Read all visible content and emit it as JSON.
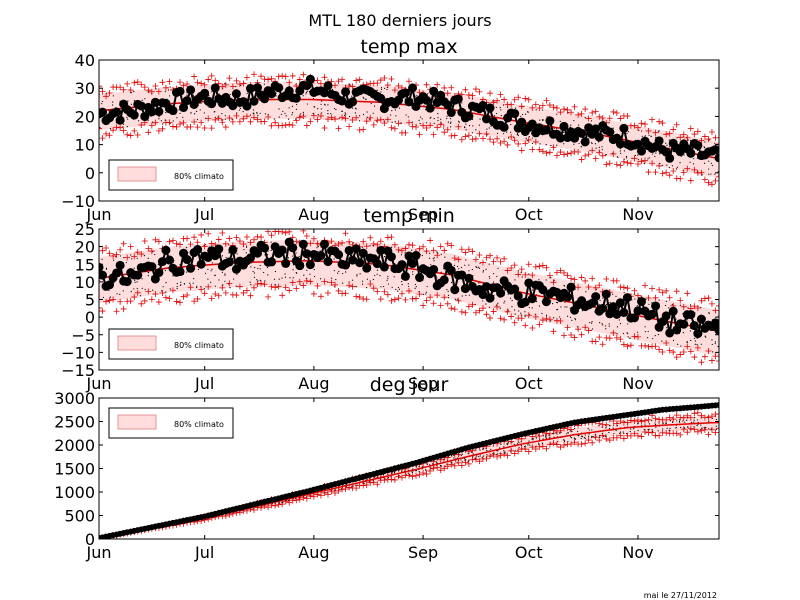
{
  "figure": {
    "title": "MTL 180 derniers jours",
    "footer": "mai le 27/11/2012"
  },
  "chart_data": [
    {
      "type": "line",
      "title": "temp max",
      "xlabel": "",
      "ylabel": "",
      "ylim": [
        -10,
        40
      ],
      "yticks": [
        "40",
        "30",
        "20",
        "10",
        "0",
        "−10"
      ],
      "month_ticks": [
        "Jun",
        "Jul",
        "Aug",
        "Sep",
        "Oct",
        "Nov"
      ],
      "legend": {
        "label": "80% climato",
        "placement": "lower-left"
      },
      "grid": false,
      "series": [
        {
          "role": "observed",
          "color": "#000000",
          "marker": "circle",
          "control": [
            [
              0,
              21
            ],
            [
              10,
              22
            ],
            [
              20,
              25
            ],
            [
              30,
              27
            ],
            [
              40,
              26
            ],
            [
              50,
              29
            ],
            [
              60,
              30
            ],
            [
              70,
              27
            ],
            [
              80,
              26
            ],
            [
              90,
              27
            ],
            [
              100,
              24
            ],
            [
              110,
              21
            ],
            [
              120,
              18
            ],
            [
              130,
              16
            ],
            [
              140,
              14
            ],
            [
              150,
              13
            ],
            [
              160,
              8
            ],
            [
              170,
              7
            ],
            [
              176,
              5
            ]
          ]
        },
        {
          "role": "normal",
          "color": "#e00000",
          "control": [
            [
              0,
              22
            ],
            [
              20,
              24.5
            ],
            [
              40,
              26
            ],
            [
              60,
              26
            ],
            [
              80,
              25
            ],
            [
              100,
              22.5
            ],
            [
              120,
              18
            ],
            [
              140,
              14
            ],
            [
              160,
              9
            ],
            [
              176,
              5
            ]
          ]
        },
        {
          "role": "band",
          "color": "#ffdddd",
          "low_offset": -7,
          "high_offset": 6
        }
      ]
    },
    {
      "type": "line",
      "title": "temp min",
      "xlabel": "",
      "ylabel": "",
      "ylim": [
        -15,
        25
      ],
      "yticks": [
        "25",
        "20",
        "15",
        "10",
        "5",
        "0",
        "−5",
        "−10",
        "−15"
      ],
      "month_ticks": [
        "Jun",
        "Jul",
        "Aug",
        "Sep",
        "Oct",
        "Nov"
      ],
      "legend": {
        "label": "80% climato",
        "placement": "lower-left"
      },
      "grid": false,
      "series": [
        {
          "role": "observed",
          "color": "#000000",
          "marker": "circle",
          "control": [
            [
              0,
              12
            ],
            [
              10,
              11
            ],
            [
              20,
              16
            ],
            [
              30,
              17
            ],
            [
              40,
              16
            ],
            [
              50,
              18
            ],
            [
              60,
              18
            ],
            [
              70,
              16
            ],
            [
              80,
              16
            ],
            [
              90,
              14
            ],
            [
              100,
              11
            ],
            [
              110,
              8
            ],
            [
              120,
              7
            ],
            [
              130,
              6
            ],
            [
              140,
              4
            ],
            [
              150,
              3
            ],
            [
              160,
              -1
            ],
            [
              170,
              -3
            ],
            [
              176,
              -3
            ]
          ]
        },
        {
          "role": "normal",
          "color": "#e00000",
          "control": [
            [
              0,
              11
            ],
            [
              20,
              14
            ],
            [
              40,
              15.5
            ],
            [
              60,
              16
            ],
            [
              80,
              15
            ],
            [
              100,
              12
            ],
            [
              120,
              7
            ],
            [
              140,
              3
            ],
            [
              160,
              -1
            ],
            [
              176,
              -4
            ]
          ]
        },
        {
          "role": "band",
          "color": "#ffdddd",
          "low_offset": -7,
          "high_offset": 6
        }
      ]
    },
    {
      "type": "line",
      "title": "deg jour",
      "xlabel": "",
      "ylabel": "",
      "ylim": [
        0,
        3000
      ],
      "yticks": [
        "3000",
        "2500",
        "2000",
        "1500",
        "1000",
        "500",
        "0"
      ],
      "month_ticks": [
        "Jun",
        "Jul",
        "Aug",
        "Sep",
        "Oct",
        "Nov"
      ],
      "legend": {
        "label": "80% climato",
        "placement": "upper-left"
      },
      "grid": false,
      "series": [
        {
          "role": "observed",
          "color": "#000000",
          "marker": "circle",
          "control": [
            [
              0,
              20
            ],
            [
              30,
              480
            ],
            [
              60,
              1030
            ],
            [
              90,
              1620
            ],
            [
              105,
              1950
            ],
            [
              120,
              2230
            ],
            [
              135,
              2480
            ],
            [
              150,
              2640
            ],
            [
              160,
              2750
            ],
            [
              170,
              2810
            ],
            [
              176,
              2850
            ]
          ]
        },
        {
          "role": "normal",
          "color": "#e00000",
          "control": [
            [
              0,
              15
            ],
            [
              30,
              440
            ],
            [
              60,
              960
            ],
            [
              90,
              1480
            ],
            [
              105,
              1760
            ],
            [
              120,
              2020
            ],
            [
              135,
              2220
            ],
            [
              150,
              2370
            ],
            [
              160,
              2420
            ],
            [
              170,
              2460
            ],
            [
              176,
              2480
            ]
          ]
        },
        {
          "role": "band",
          "color": "#ffdddd",
          "low_fraction": 0.94,
          "high_fraction": 1.06
        }
      ]
    }
  ]
}
